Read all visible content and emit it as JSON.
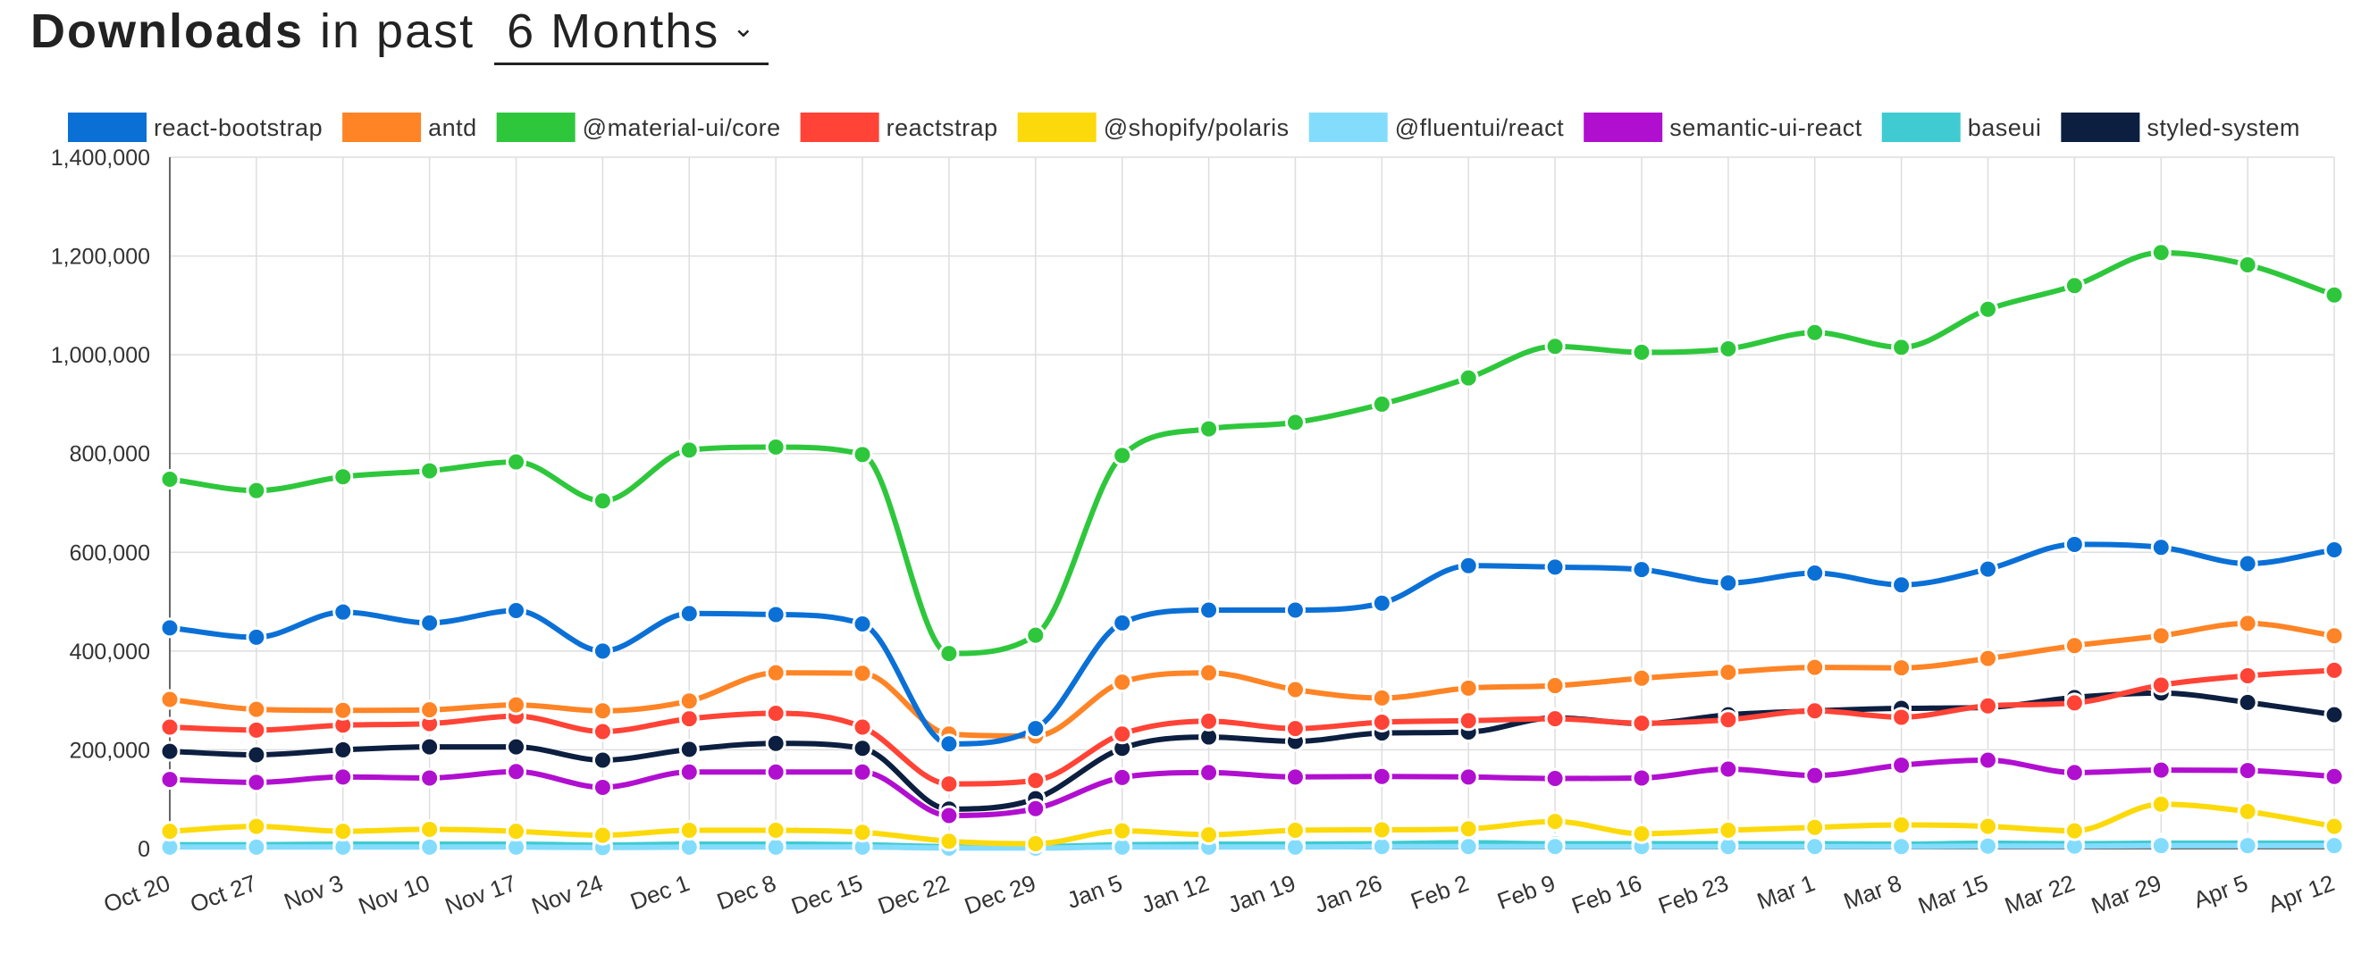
{
  "header": {
    "title_strong": "Downloads",
    "title_light": "in past",
    "period": "6 Months",
    "period_icon": "chevron-down-icon"
  },
  "chart_data": {
    "type": "line",
    "title": "Downloads in past 6 Months",
    "xlabel": "",
    "ylabel": "",
    "ylim": [
      0,
      1400000
    ],
    "yticks": [
      0,
      200000,
      400000,
      600000,
      800000,
      1000000,
      1200000,
      1400000
    ],
    "ytick_labels": [
      "0",
      "200,000",
      "400,000",
      "600,000",
      "800,000",
      "1,000,000",
      "1,200,000",
      "1,400,000"
    ],
    "grid": true,
    "legend": "top",
    "categories": [
      "Oct 20",
      "Oct 27",
      "Nov 3",
      "Nov 10",
      "Nov 17",
      "Nov 24",
      "Dec 1",
      "Dec 8",
      "Dec 15",
      "Dec 22",
      "Dec 29",
      "Jan 5",
      "Jan 12",
      "Jan 19",
      "Jan 26",
      "Feb 2",
      "Feb 9",
      "Feb 16",
      "Feb 23",
      "Mar 1",
      "Mar 8",
      "Mar 15",
      "Mar 22",
      "Mar 29",
      "Apr 5",
      "Apr 12"
    ],
    "series": [
      {
        "name": "react-bootstrap",
        "color": "#0b70d6",
        "values": [
          447000,
          428000,
          479000,
          457000,
          482000,
          400000,
          476000,
          474000,
          455000,
          212000,
          243000,
          457000,
          483000,
          483000,
          497000,
          573000,
          570000,
          565000,
          538000,
          558000,
          534000,
          566000,
          616000,
          610000,
          577000,
          605000
        ]
      },
      {
        "name": "antd",
        "color": "#fe8426",
        "values": [
          302000,
          282000,
          280000,
          281000,
          291000,
          279000,
          299000,
          356000,
          355000,
          232000,
          228000,
          337000,
          356000,
          322000,
          305000,
          325000,
          330000,
          345000,
          357000,
          367000,
          366000,
          385000,
          411000,
          431000,
          456000,
          431000
        ]
      },
      {
        "name": "@material-ui/core",
        "color": "#2ec73c",
        "values": [
          748000,
          725000,
          753000,
          765000,
          783000,
          704000,
          807000,
          813000,
          798000,
          395000,
          432000,
          796000,
          850000,
          863000,
          900000,
          953000,
          1017000,
          1005000,
          1012000,
          1045000,
          1015000,
          1092000,
          1140000,
          1207000,
          1182000,
          1121000
        ]
      },
      {
        "name": "reactstrap",
        "color": "#ff4336",
        "values": [
          246000,
          240000,
          250000,
          253000,
          268000,
          237000,
          263000,
          274000,
          246000,
          131000,
          138000,
          232000,
          258000,
          243000,
          256000,
          259000,
          263000,
          254000,
          261000,
          279000,
          266000,
          289000,
          295000,
          331000,
          350000,
          361000
        ]
      },
      {
        "name": "@shopify/polaris",
        "color": "#fcd90a",
        "values": [
          35000,
          45000,
          35000,
          39000,
          35000,
          27000,
          37000,
          37000,
          33000,
          15000,
          10000,
          36000,
          28000,
          37000,
          38000,
          40000,
          55000,
          30000,
          37000,
          43000,
          48000,
          45000,
          36000,
          90000,
          75000,
          45000
        ]
      },
      {
        "name": "@fluentui/react",
        "color": "#84dcfd",
        "values": [
          3000,
          3000,
          3000,
          3000,
          3000,
          2000,
          3000,
          3000,
          3000,
          1000,
          1000,
          3000,
          3000,
          3000,
          4000,
          4000,
          4000,
          4000,
          4000,
          4000,
          4000,
          5000,
          5000,
          6000,
          6000,
          6000
        ]
      },
      {
        "name": "semantic-ui-react",
        "color": "#b10fd0",
        "values": [
          140000,
          134000,
          145000,
          143000,
          156000,
          124000,
          155000,
          155000,
          155000,
          67000,
          81000,
          144000,
          154000,
          145000,
          146000,
          145000,
          142000,
          143000,
          161000,
          148000,
          169000,
          179000,
          154000,
          159000,
          158000,
          146000
        ]
      },
      {
        "name": "baseui",
        "color": "#3fcbd1",
        "values": [
          8000,
          8000,
          9000,
          9000,
          9000,
          7000,
          9000,
          9000,
          8000,
          4000,
          4000,
          8000,
          9000,
          9000,
          10000,
          12000,
          10000,
          10000,
          10000,
          10000,
          9000,
          11000,
          10000,
          11000,
          11000,
          11000
        ]
      },
      {
        "name": "styled-system",
        "color": "#0c1f40",
        "values": [
          197000,
          190000,
          200000,
          206000,
          206000,
          179000,
          201000,
          213000,
          203000,
          80000,
          101000,
          203000,
          226000,
          217000,
          234000,
          236000,
          265000,
          253000,
          271000,
          279000,
          284000,
          286000,
          306000,
          315000,
          296000,
          271000
        ]
      }
    ]
  }
}
